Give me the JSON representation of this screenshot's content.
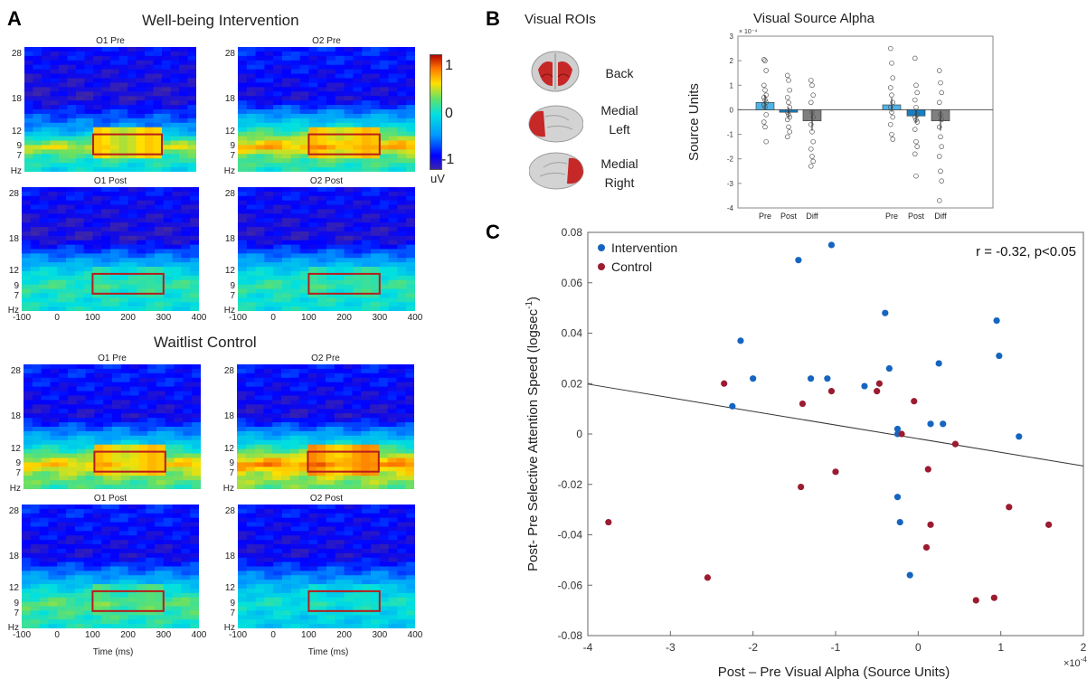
{
  "panelA": {
    "letter": "A",
    "groups": [
      {
        "title": "Well-being Intervention",
        "maps": [
          {
            "title": "O1 Pre",
            "stops": [
              [
                28,
                0.12
              ],
              [
                18,
                0.05
              ],
              [
                12,
                0.35
              ],
              [
                9,
                0.72
              ],
              [
                7,
                0.55
              ],
              [
                4,
                0.45
              ]
            ],
            "roi_value": 0.78
          },
          {
            "title": "O2 Pre",
            "stops": [
              [
                28,
                0.15
              ],
              [
                18,
                0.08
              ],
              [
                12,
                0.55
              ],
              [
                9,
                0.82
              ],
              [
                7,
                0.6
              ],
              [
                4,
                0.5
              ]
            ],
            "roi_value": 0.8
          },
          {
            "title": "O1 Post",
            "stops": [
              [
                28,
                0.12
              ],
              [
                18,
                0.05
              ],
              [
                12,
                0.45
              ],
              [
                9,
                0.55
              ],
              [
                7,
                0.5
              ],
              [
                4,
                0.48
              ]
            ],
            "roi_value": 0.55
          },
          {
            "title": "O2 Post",
            "stops": [
              [
                28,
                0.12
              ],
              [
                18,
                0.06
              ],
              [
                12,
                0.45
              ],
              [
                9,
                0.55
              ],
              [
                7,
                0.5
              ],
              [
                4,
                0.48
              ]
            ],
            "roi_value": 0.56
          }
        ]
      },
      {
        "title": "Waitlist Control",
        "maps": [
          {
            "title": "O1 Pre",
            "stops": [
              [
                28,
                0.15
              ],
              [
                18,
                0.08
              ],
              [
                12,
                0.5
              ],
              [
                9,
                0.78
              ],
              [
                7,
                0.65
              ],
              [
                4,
                0.55
              ]
            ],
            "roi_value": 0.8
          },
          {
            "title": "O2 Pre",
            "stops": [
              [
                28,
                0.14
              ],
              [
                18,
                0.07
              ],
              [
                12,
                0.55
              ],
              [
                9,
                0.86
              ],
              [
                7,
                0.7
              ],
              [
                4,
                0.6
              ]
            ],
            "roi_value": 0.86
          },
          {
            "title": "O1 Post",
            "stops": [
              [
                28,
                0.15
              ],
              [
                18,
                0.08
              ],
              [
                12,
                0.45
              ],
              [
                9,
                0.6
              ],
              [
                7,
                0.55
              ],
              [
                4,
                0.5
              ]
            ],
            "roi_value": 0.6
          },
          {
            "title": "O2 Post",
            "stops": [
              [
                28,
                0.13
              ],
              [
                18,
                0.08
              ],
              [
                12,
                0.4
              ],
              [
                9,
                0.5
              ],
              [
                7,
                0.45
              ],
              [
                4,
                0.42
              ]
            ],
            "roi_value": 0.5
          }
        ]
      }
    ],
    "yticks": [
      "28",
      "18",
      "12",
      "9",
      "7",
      "Hz"
    ],
    "ytick_values": [
      28,
      18,
      12,
      9,
      7,
      4
    ],
    "xticks": [
      "-100",
      "0",
      "100",
      "200",
      "300",
      "400"
    ],
    "xtick_values": [
      -100,
      0,
      100,
      200,
      300,
      400
    ],
    "xlabel": "Time (ms)",
    "roi": {
      "t0": 100,
      "t1": 300,
      "f0": 7.5,
      "f1": 11.5,
      "color": "#b71c1c"
    },
    "colorbar": {
      "ticks": [
        "1",
        "0",
        "-1"
      ],
      "tick_values": [
        1,
        0,
        -1
      ],
      "unit": "uV"
    }
  },
  "panelB": {
    "letter": "B",
    "roi_title": "Visual ROIs",
    "roi_labels": [
      "Back",
      "Medial\nLeft",
      "Medial\nRight"
    ],
    "chart_data": {
      "type": "bar",
      "title": "Visual Source Alpha",
      "ylabel": "Source Units",
      "yscale_label": "× 10⁻⁴",
      "ylim": [
        -4,
        3
      ],
      "yticks": [
        3,
        2,
        1,
        0,
        -1,
        -2,
        -3,
        -4
      ],
      "categories": [
        "Pre",
        "Post",
        "Diff",
        "Pre",
        "Post",
        "Diff"
      ],
      "values": [
        0.3,
        -0.1,
        -0.45,
        0.2,
        -0.25,
        -0.45
      ],
      "errors": [
        0.3,
        0.2,
        0.4,
        0.28,
        0.28,
        0.4
      ],
      "bar_colors": [
        "#4fb3e8",
        "#1b7ec2",
        "#7f7f7f",
        "#4fb3e8",
        "#1b7ec2",
        "#7f7f7f"
      ],
      "points": [
        [
          2.05,
          2.0,
          1.6,
          1.0,
          0.8,
          0.6,
          0.5,
          0.4,
          0.3,
          0.2,
          0.1,
          -0.2,
          -0.5,
          -0.7,
          -1.3
        ],
        [
          1.4,
          1.2,
          0.8,
          0.5,
          0.3,
          0.1,
          -0.1,
          -0.2,
          -0.3,
          -0.4,
          -0.7,
          -0.9,
          -1.1
        ],
        [
          1.2,
          1.0,
          0.6,
          0.3,
          -0.1,
          -0.3,
          -0.6,
          -0.9,
          -1.3,
          -1.6,
          -1.9,
          -2.1,
          -2.3
        ],
        [
          2.5,
          1.9,
          1.3,
          0.9,
          0.6,
          0.3,
          0.1,
          -0.1,
          -0.3,
          -0.6,
          -1.0,
          -1.2
        ],
        [
          2.1,
          1.0,
          0.7,
          0.4,
          0.1,
          -0.2,
          -0.3,
          -0.4,
          -0.5,
          -0.8,
          -1.3,
          -1.5,
          -1.8,
          -2.7
        ],
        [
          1.6,
          1.1,
          0.7,
          0.3,
          -0.2,
          -0.4,
          -0.7,
          -1.1,
          -1.5,
          -1.9,
          -2.5,
          -2.9,
          -3.7
        ]
      ]
    }
  },
  "panelC": {
    "letter": "C",
    "chart_data": {
      "type": "scatter",
      "xlabel": "Post – Pre Visual Alpha (Source Units)",
      "ylabel_main": "Post- Pre Selective Attention Speed (logsec",
      "ylabel_sup": "-1",
      "ylabel_end": ")",
      "xscale_label": "×10",
      "xscale_sup": "-4",
      "annotation": "r = -0.32, p<0.05",
      "xlim": [
        -4,
        2
      ],
      "ylim": [
        -0.08,
        0.08
      ],
      "xticks": [
        -4,
        -3,
        -2,
        -1,
        0,
        1,
        2
      ],
      "yticks": [
        0.08,
        0.06,
        0.04,
        0.02,
        0,
        -0.02,
        -0.04,
        -0.06,
        -0.08
      ],
      "ytick_labels": [
        "0.08",
        "0.06",
        "0.04",
        "0.02",
        "0",
        "-0.02",
        "-0.04",
        "-0.06",
        "-0.08"
      ],
      "fit_line": {
        "x": [
          -4,
          2
        ],
        "y": [
          0.0198,
          -0.0127
        ]
      },
      "series": [
        {
          "name": "Intervention",
          "color": "#1565c0",
          "points": [
            [
              -2.25,
              0.011
            ],
            [
              -2.15,
              0.037
            ],
            [
              -2.0,
              0.022
            ],
            [
              -1.45,
              0.069
            ],
            [
              -1.3,
              0.022
            ],
            [
              -1.1,
              0.022
            ],
            [
              -1.05,
              0.075
            ],
            [
              -0.65,
              0.019
            ],
            [
              -0.4,
              0.048
            ],
            [
              -0.35,
              0.026
            ],
            [
              -0.25,
              0.002
            ],
            [
              -0.25,
              0.0
            ],
            [
              -0.25,
              -0.025
            ],
            [
              -0.22,
              -0.035
            ],
            [
              -0.1,
              -0.056
            ],
            [
              0.15,
              0.004
            ],
            [
              0.25,
              0.028
            ],
            [
              0.3,
              0.004
            ],
            [
              0.95,
              0.045
            ],
            [
              0.98,
              0.031
            ],
            [
              1.22,
              -0.001
            ]
          ]
        },
        {
          "name": "Control",
          "color": "#9b1b30",
          "points": [
            [
              -3.75,
              -0.035
            ],
            [
              -2.55,
              -0.057
            ],
            [
              -2.35,
              0.02
            ],
            [
              -1.4,
              0.012
            ],
            [
              -1.42,
              -0.021
            ],
            [
              -1.05,
              0.017
            ],
            [
              -1.0,
              -0.015
            ],
            [
              -0.5,
              0.017
            ],
            [
              -0.47,
              0.02
            ],
            [
              -0.2,
              0.0
            ],
            [
              -0.05,
              0.013
            ],
            [
              0.1,
              -0.045
            ],
            [
              0.12,
              -0.014
            ],
            [
              0.15,
              -0.036
            ],
            [
              0.45,
              -0.004
            ],
            [
              0.7,
              -0.066
            ],
            [
              0.92,
              -0.065
            ],
            [
              1.1,
              -0.029
            ],
            [
              1.58,
              -0.036
            ]
          ]
        }
      ]
    }
  }
}
